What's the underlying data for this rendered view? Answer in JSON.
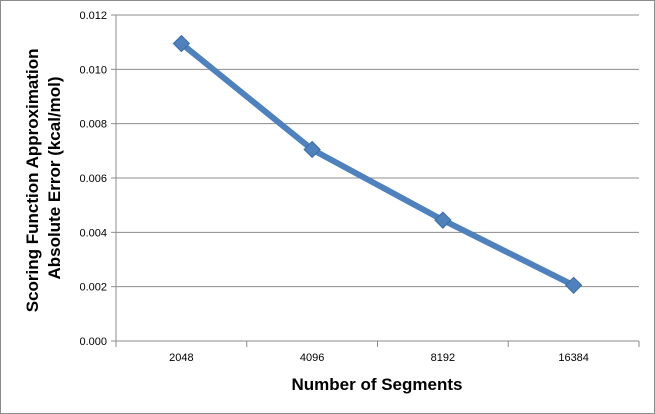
{
  "chart_data": {
    "type": "line",
    "xlabel": "Number of Segments",
    "ylabel_lines": [
      "Scoring Function Approximation",
      "Absolute Error  (kcal/mol)"
    ],
    "categories": [
      "2048",
      "4096",
      "8192",
      "16384"
    ],
    "series": [
      {
        "values": [
          0.01095,
          0.00705,
          0.00445,
          0.00205
        ],
        "color": "#4f81bd",
        "marker": "diamond"
      }
    ],
    "ylim": [
      0,
      0.012
    ],
    "yticks": [
      "0.000",
      "0.002",
      "0.004",
      "0.006",
      "0.008",
      "0.010",
      "0.012"
    ],
    "grid": true,
    "legend": "none"
  }
}
